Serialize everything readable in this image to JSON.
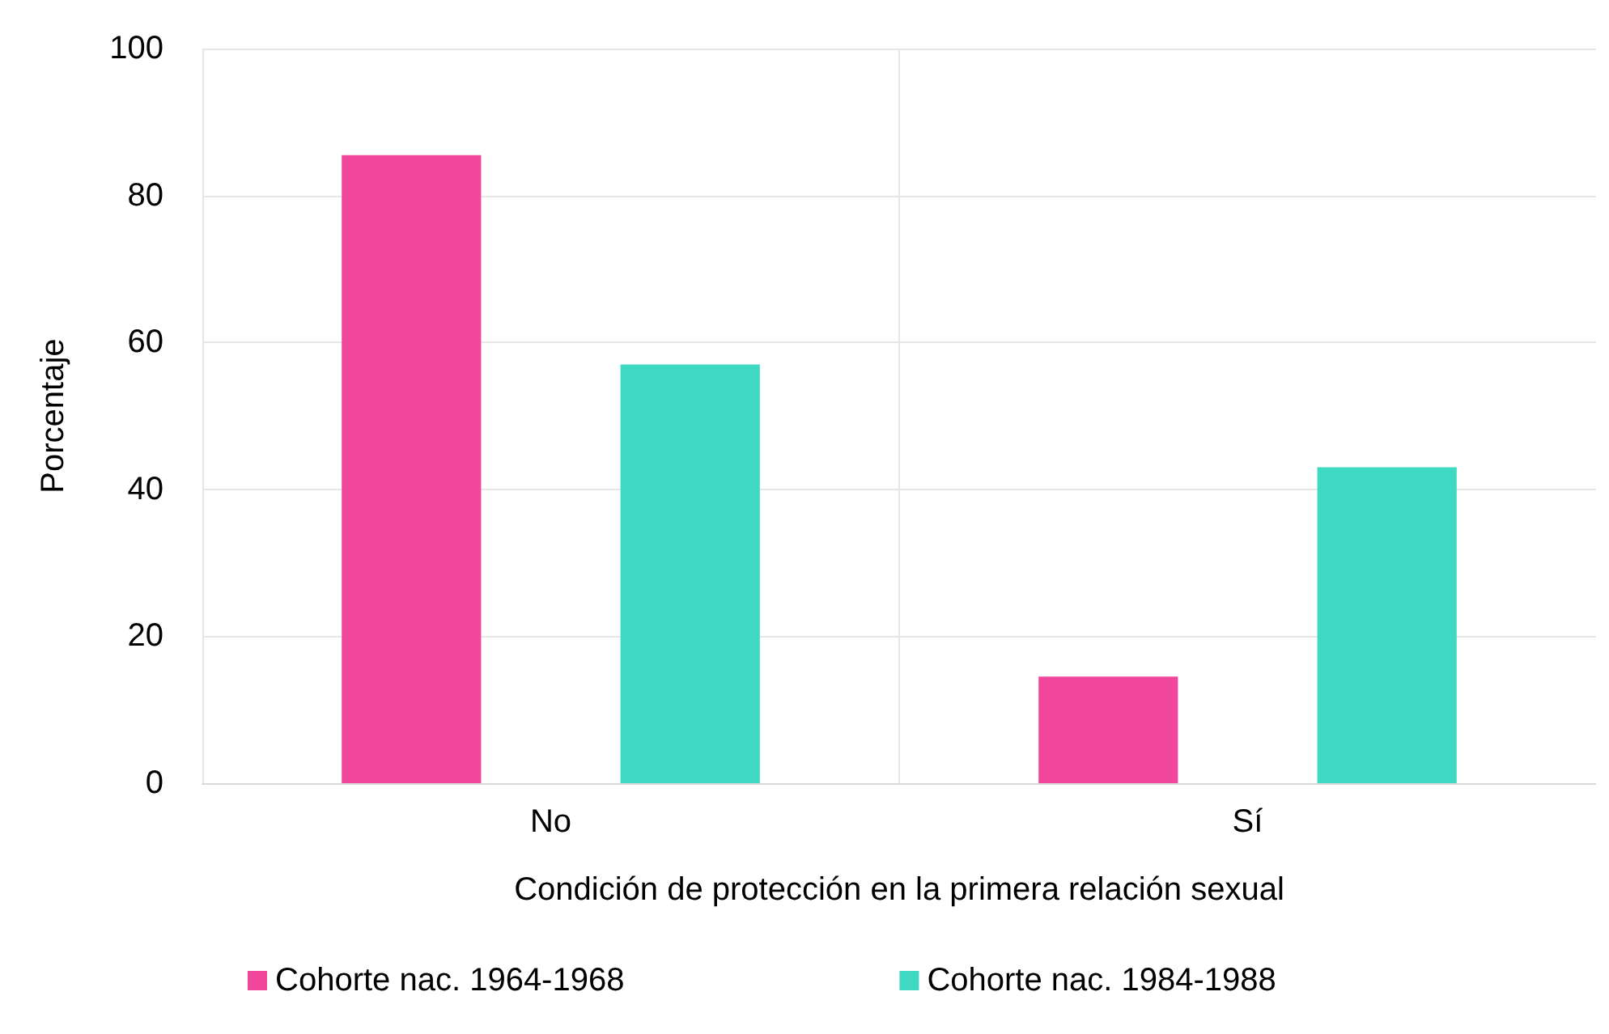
{
  "chart_data": {
    "type": "bar",
    "xlabel": "Condición de protección en la primera relación sexual",
    "ylabel": "Porcentaje",
    "categories": [
      "No",
      "Sí"
    ],
    "series": [
      {
        "name": "Cohorte nac. 1964-1968",
        "color": "#f0479c",
        "values": [
          85.5,
          14.5
        ]
      },
      {
        "name": "Cohorte nac. 1984-1988",
        "color": "#3fd8c2",
        "values": [
          57,
          43
        ]
      }
    ],
    "ylim": [
      0,
      100
    ],
    "yticks": [
      0,
      20,
      40,
      60,
      80,
      100
    ],
    "grid": true,
    "legend": "bottom"
  }
}
